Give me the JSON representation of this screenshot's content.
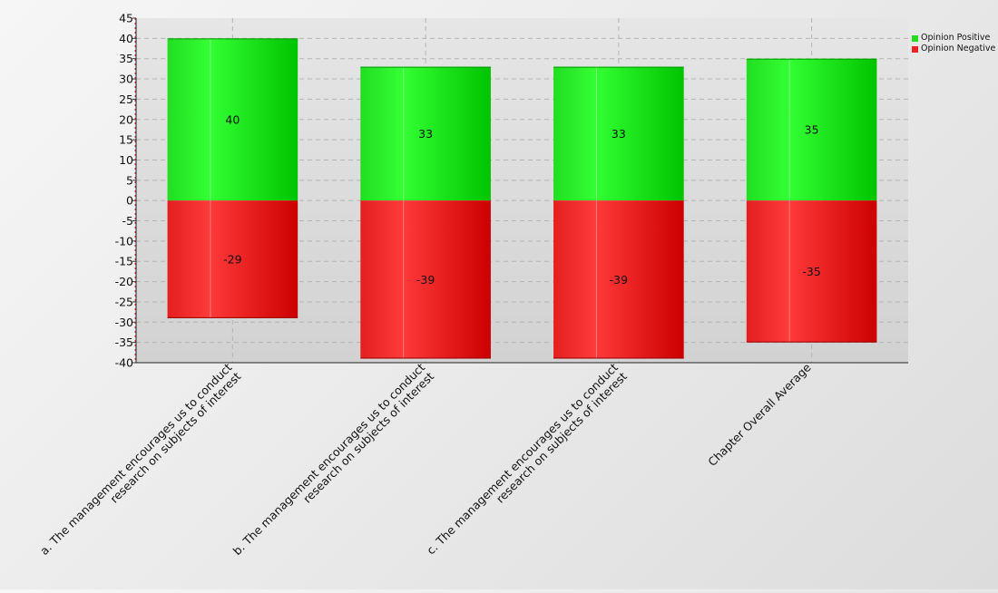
{
  "chart_data": {
    "type": "bar",
    "stacked": true,
    "categories": [
      [
        "a. The management encourages us to conduct",
        "research on subjects of interest"
      ],
      [
        "b. The management encourages us to conduct",
        "research on subjects of interest"
      ],
      [
        "c. The management encourages us to conduct",
        "research on subjects of interest"
      ],
      [
        "Chapter Overall Average"
      ]
    ],
    "series": [
      {
        "name": "Opinion Positive",
        "values": [
          40,
          33,
          33,
          35
        ],
        "color": "#22dd22"
      },
      {
        "name": "Opinion Negative",
        "values": [
          -29,
          -39,
          -39,
          -35
        ],
        "color": "#ee2222"
      }
    ],
    "data_labels": [
      [
        "40",
        "33",
        "33",
        "35"
      ],
      [
        "-29",
        "-39",
        "-39",
        "-35"
      ]
    ],
    "ylim": [
      -40,
      45
    ],
    "y_ticks": [
      45,
      40,
      35,
      30,
      25,
      20,
      15,
      10,
      5,
      0,
      -5,
      -10,
      -15,
      -20,
      -25,
      -30,
      -35,
      -40
    ],
    "grid": true,
    "legend_position": "top-right",
    "title": "",
    "xlabel": "",
    "ylabel": ""
  }
}
